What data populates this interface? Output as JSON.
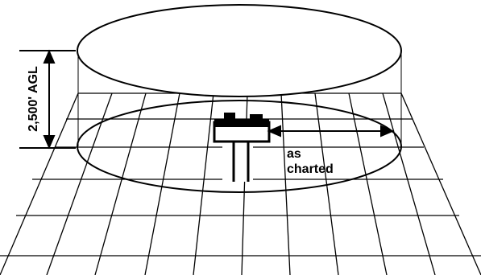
{
  "height_label": "2,500' AGL",
  "radius_label_line1": "as",
  "radius_label_line2": "charted",
  "colors": {
    "stroke": "#000000",
    "background": "#ffffff"
  }
}
